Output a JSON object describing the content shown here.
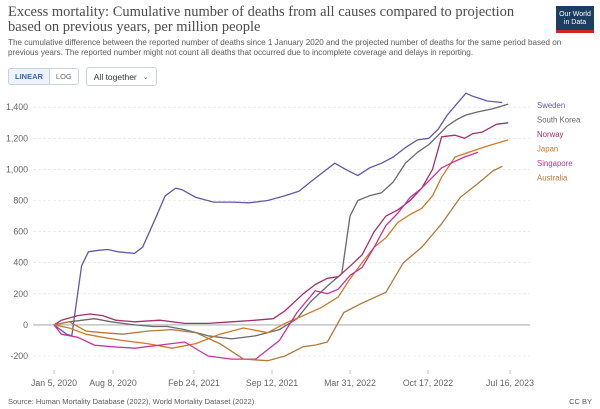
{
  "header": {
    "title": "Excess mortality: Cumulative number of deaths from all causes compared to projection based on previous years, per million people",
    "subtitle": "The cumulative difference between the reported number of deaths since 1 January 2020 and the projected number of deaths for the same period based on previous years. The reported number might not count all deaths that occurred due to incomplete coverage and delays in reporting.",
    "logo_line1": "Our World",
    "logo_line2": "in Data"
  },
  "controls": {
    "linear_label": "LINEAR",
    "log_label": "LOG",
    "active_scale": "linear",
    "group_label": "All together"
  },
  "footer": {
    "source": "Source: Human Mortality Database (2022), World Mortality Dataset (2022)",
    "license": "CC BY"
  },
  "chart_data": {
    "type": "line",
    "x_ticks": [
      "Jan 5, 2020",
      "Aug 8, 2020",
      "Feb 24, 2021",
      "Sep 12, 2021",
      "Mar 31, 2022",
      "Oct 17, 2022",
      "Jul 16, 2023"
    ],
    "y_ticks": [
      -200,
      0,
      200,
      400,
      600,
      800,
      "1,000",
      "1,200",
      "1,400"
    ],
    "ylim": [
      -290,
      1530
    ],
    "grid": true,
    "legend_position": "right-inline",
    "series": [
      {
        "name": "Sweden",
        "color": "#6357a8",
        "points": [
          [
            "2020-01-05",
            0
          ],
          [
            "2020-02-20",
            -60
          ],
          [
            "2020-03-10",
            -70
          ],
          [
            "2020-03-25",
            120
          ],
          [
            "2020-04-15",
            380
          ],
          [
            "2020-05-10",
            470
          ],
          [
            "2020-06-15",
            480
          ],
          [
            "2020-07-20",
            485
          ],
          [
            "2020-08-20",
            470
          ],
          [
            "2020-09-30",
            460
          ],
          [
            "2020-10-20",
            500
          ],
          [
            "2020-11-20",
            680
          ],
          [
            "2020-12-15",
            830
          ],
          [
            "2021-01-10",
            880
          ],
          [
            "2021-01-25",
            870
          ],
          [
            "2021-03-01",
            820
          ],
          [
            "2021-04-15",
            790
          ],
          [
            "2021-06-01",
            790
          ],
          [
            "2021-07-15",
            785
          ],
          [
            "2021-09-01",
            800
          ],
          [
            "2021-10-15",
            830
          ],
          [
            "2021-11-20",
            860
          ],
          [
            "2021-12-20",
            920
          ],
          [
            "2022-01-20",
            980
          ],
          [
            "2022-02-20",
            1040
          ],
          [
            "2022-03-20",
            1000
          ],
          [
            "2022-04-20",
            960
          ],
          [
            "2022-05-20",
            1010
          ],
          [
            "2022-06-20",
            1040
          ],
          [
            "2022-07-20",
            1080
          ],
          [
            "2022-08-20",
            1140
          ],
          [
            "2022-09-20",
            1190
          ],
          [
            "2022-10-20",
            1200
          ],
          [
            "2022-11-20",
            1260
          ],
          [
            "2022-12-20",
            1350
          ],
          [
            "2023-01-20",
            1420
          ],
          [
            "2023-02-20",
            1490
          ],
          [
            "2023-03-15",
            1470
          ],
          [
            "2023-05-01",
            1440
          ],
          [
            "2023-06-20",
            1430
          ]
        ]
      },
      {
        "name": "South Korea",
        "color": "#686868",
        "points": [
          [
            "2020-01-05",
            0
          ],
          [
            "2020-03-01",
            20
          ],
          [
            "2020-06-01",
            40
          ],
          [
            "2020-08-01",
            20
          ],
          [
            "2020-10-01",
            0
          ],
          [
            "2020-11-15",
            -10
          ],
          [
            "2020-12-20",
            -10
          ],
          [
            "2021-02-01",
            -30
          ],
          [
            "2021-04-01",
            -70
          ],
          [
            "2021-06-01",
            -90
          ],
          [
            "2021-08-01",
            -70
          ],
          [
            "2021-10-01",
            -30
          ],
          [
            "2021-11-15",
            40
          ],
          [
            "2021-12-20",
            150
          ],
          [
            "2022-02-01",
            250
          ],
          [
            "2022-03-10",
            330
          ],
          [
            "2022-03-31",
            700
          ],
          [
            "2022-04-20",
            800
          ],
          [
            "2022-05-20",
            830
          ],
          [
            "2022-06-20",
            850
          ],
          [
            "2022-07-20",
            920
          ],
          [
            "2022-08-20",
            1040
          ],
          [
            "2022-09-20",
            1110
          ],
          [
            "2022-10-20",
            1160
          ],
          [
            "2022-11-20",
            1220
          ],
          [
            "2022-12-20",
            1280
          ],
          [
            "2023-01-20",
            1320
          ],
          [
            "2023-02-20",
            1350
          ],
          [
            "2023-04-01",
            1370
          ],
          [
            "2023-05-20",
            1390
          ],
          [
            "2023-07-10",
            1420
          ]
        ]
      },
      {
        "name": "Norway",
        "color": "#a2306c",
        "points": [
          [
            "2020-01-05",
            0
          ],
          [
            "2020-02-01",
            30
          ],
          [
            "2020-04-01",
            60
          ],
          [
            "2020-05-15",
            70
          ],
          [
            "2020-07-01",
            60
          ],
          [
            "2020-08-15",
            30
          ],
          [
            "2020-10-01",
            20
          ],
          [
            "2020-12-01",
            30
          ],
          [
            "2021-02-01",
            10
          ],
          [
            "2021-04-01",
            10
          ],
          [
            "2021-06-01",
            20
          ],
          [
            "2021-08-01",
            30
          ],
          [
            "2021-09-15",
            40
          ],
          [
            "2021-10-15",
            90
          ],
          [
            "2021-12-01",
            200
          ],
          [
            "2022-01-01",
            260
          ],
          [
            "2022-02-01",
            300
          ],
          [
            "2022-03-01",
            310
          ],
          [
            "2022-04-01",
            380
          ],
          [
            "2022-05-01",
            450
          ],
          [
            "2022-06-01",
            600
          ],
          [
            "2022-07-01",
            700
          ],
          [
            "2022-08-01",
            740
          ],
          [
            "2022-09-01",
            800
          ],
          [
            "2022-10-01",
            880
          ],
          [
            "2022-11-01",
            1000
          ],
          [
            "2022-12-01",
            1210
          ],
          [
            "2023-01-15",
            1220
          ],
          [
            "2023-02-15",
            1200
          ],
          [
            "2023-03-15",
            1230
          ],
          [
            "2023-04-15",
            1240
          ],
          [
            "2023-06-01",
            1290
          ],
          [
            "2023-07-10",
            1300
          ]
        ]
      },
      {
        "name": "Japan",
        "color": "#cf7a27",
        "points": [
          [
            "2020-01-05",
            0
          ],
          [
            "2020-03-01",
            -20
          ],
          [
            "2020-05-01",
            -60
          ],
          [
            "2020-07-01",
            -80
          ],
          [
            "2020-09-01",
            -100
          ],
          [
            "2020-11-01",
            -120
          ],
          [
            "2021-01-01",
            -150
          ],
          [
            "2021-03-01",
            -120
          ],
          [
            "2021-05-01",
            -60
          ],
          [
            "2021-07-01",
            -20
          ],
          [
            "2021-09-01",
            -50
          ],
          [
            "2021-10-15",
            10
          ],
          [
            "2021-12-01",
            60
          ],
          [
            "2022-01-15",
            110
          ],
          [
            "2022-03-01",
            180
          ],
          [
            "2022-04-01",
            300
          ],
          [
            "2022-05-01",
            400
          ],
          [
            "2022-06-01",
            500
          ],
          [
            "2022-07-01",
            560
          ],
          [
            "2022-08-01",
            660
          ],
          [
            "2022-09-01",
            710
          ],
          [
            "2022-10-01",
            750
          ],
          [
            "2022-11-01",
            830
          ],
          [
            "2022-12-01",
            950
          ],
          [
            "2023-01-15",
            1080
          ],
          [
            "2023-03-01",
            1110
          ],
          [
            "2023-05-01",
            1150
          ],
          [
            "2023-07-10",
            1190
          ]
        ]
      },
      {
        "name": "Singapore",
        "color": "#c8339a",
        "points": [
          [
            "2020-01-05",
            0
          ],
          [
            "2020-02-01",
            -60
          ],
          [
            "2020-04-01",
            -80
          ],
          [
            "2020-06-01",
            -130
          ],
          [
            "2020-08-01",
            -140
          ],
          [
            "2020-10-01",
            -150
          ],
          [
            "2020-12-01",
            -130
          ],
          [
            "2021-02-01",
            -110
          ],
          [
            "2021-04-01",
            -200
          ],
          [
            "2021-06-01",
            -220
          ],
          [
            "2021-08-01",
            -220
          ],
          [
            "2021-10-01",
            -100
          ],
          [
            "2021-11-15",
            80
          ],
          [
            "2022-01-01",
            220
          ],
          [
            "2022-02-01",
            200
          ],
          [
            "2022-03-01",
            230
          ],
          [
            "2022-04-01",
            320
          ],
          [
            "2022-05-01",
            370
          ],
          [
            "2022-06-01",
            500
          ],
          [
            "2022-07-01",
            640
          ],
          [
            "2022-08-01",
            720
          ],
          [
            "2022-09-01",
            820
          ],
          [
            "2022-10-01",
            880
          ],
          [
            "2022-11-01",
            950
          ],
          [
            "2022-12-01",
            1010
          ],
          [
            "2023-01-01",
            1040
          ],
          [
            "2023-02-15",
            1080
          ],
          [
            "2023-04-01",
            1110
          ]
        ]
      },
      {
        "name": "Australia",
        "color": "#b4793a",
        "points": [
          [
            "2020-01-05",
            0
          ],
          [
            "2020-03-01",
            20
          ],
          [
            "2020-05-01",
            -40
          ],
          [
            "2020-07-01",
            -50
          ],
          [
            "2020-09-01",
            -60
          ],
          [
            "2020-11-01",
            -40
          ],
          [
            "2021-01-01",
            -30
          ],
          [
            "2021-03-01",
            -50
          ],
          [
            "2021-05-01",
            -120
          ],
          [
            "2021-07-01",
            -220
          ],
          [
            "2021-09-01",
            -230
          ],
          [
            "2021-10-15",
            -200
          ],
          [
            "2021-12-01",
            -140
          ],
          [
            "2022-01-01",
            -130
          ],
          [
            "2022-02-01",
            -110
          ],
          [
            "2022-03-15",
            80
          ],
          [
            "2022-05-01",
            140
          ],
          [
            "2022-07-01",
            210
          ],
          [
            "2022-08-15",
            400
          ],
          [
            "2022-10-01",
            500
          ],
          [
            "2022-12-01",
            650
          ],
          [
            "2023-02-01",
            820
          ],
          [
            "2023-04-01",
            910
          ],
          [
            "2023-05-20",
            990
          ],
          [
            "2023-06-20",
            1020
          ]
        ]
      }
    ]
  }
}
